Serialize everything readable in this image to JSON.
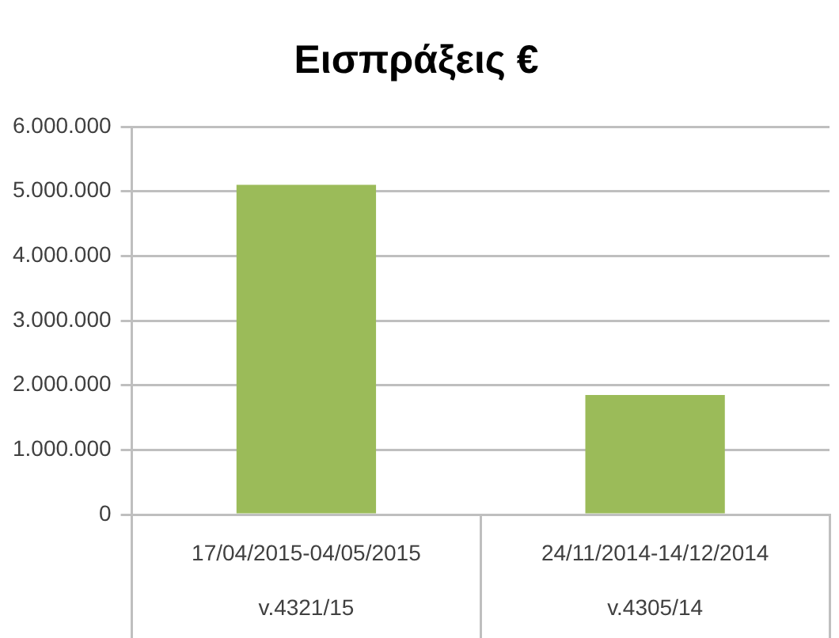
{
  "chart_data": {
    "type": "bar",
    "title": "Εισπράξεις €",
    "categories": [
      "17/04/2015-04/05/2015\nv.4321/15",
      "24/11/2014-14/12/2014\nv.4305/14"
    ],
    "values": [
      5100000,
      1850000
    ],
    "color": "#9bbb59",
    "ylim": [
      0,
      6000000
    ],
    "yticks": [
      0,
      {
        "value": 1000000,
        "label": "1.000.000"
      },
      {
        "value": 2000000,
        "label": "2.000.000"
      },
      {
        "value": 3000000,
        "label": "3.000.000"
      },
      {
        "value": 4000000,
        "label": "4.000.000"
      },
      {
        "value": 5000000,
        "label": "5.000.000"
      },
      {
        "value": 6000000,
        "label": "6.000.000"
      }
    ],
    "grid": "y",
    "legend": false
  }
}
